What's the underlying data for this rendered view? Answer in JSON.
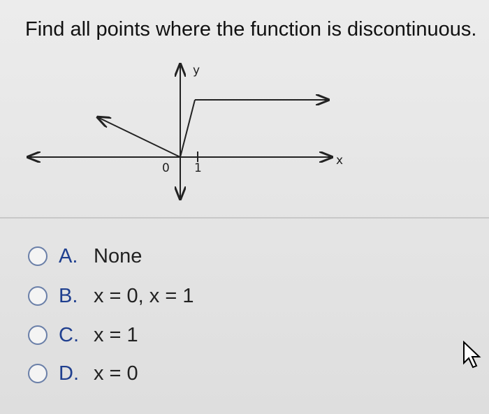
{
  "question": {
    "text": "Find all points where the function is discontinuous."
  },
  "graph": {
    "y_label": "y",
    "x_label": "x",
    "tick_0": "0",
    "tick_1": "1"
  },
  "options": [
    {
      "letter": "A.",
      "text": "None"
    },
    {
      "letter": "B.",
      "text": "x = 0, x = 1"
    },
    {
      "letter": "C.",
      "text": "x = 1"
    },
    {
      "letter": "D.",
      "text": "x = 0"
    }
  ]
}
